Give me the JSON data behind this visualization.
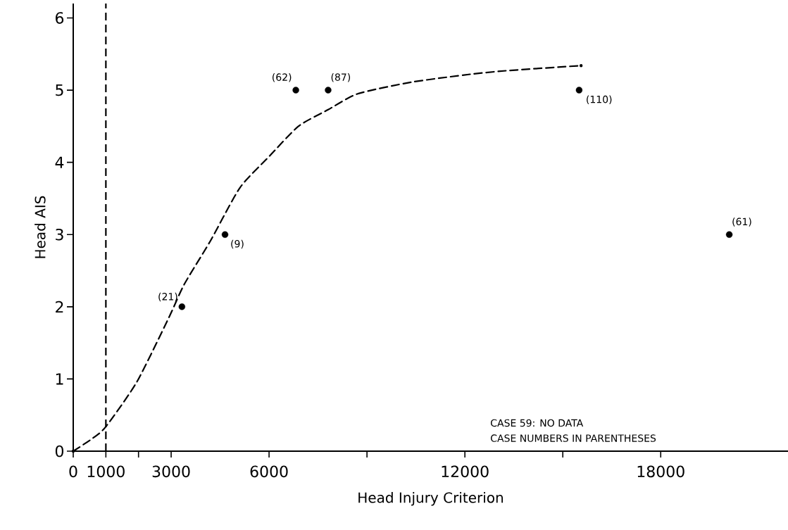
{
  "chart_data": {
    "type": "scatter",
    "xlabel": "Head Injury Criterion",
    "ylabel": "Head AIS",
    "xlim": [
      0,
      21900
    ],
    "ylim": [
      0,
      6.2
    ],
    "xticks": [
      0,
      1000,
      {
        "value": 2000,
        "label": null
      },
      3000,
      6000,
      {
        "value": 9000,
        "label": null
      },
      12000,
      {
        "value": 15000,
        "label": null
      },
      18000
    ],
    "yticks": [
      0,
      1,
      2,
      3,
      4,
      5,
      6
    ],
    "series": [
      {
        "color": "#000000",
        "marker": "circle",
        "x": [
          3330,
          4650,
          6820,
          7810,
          15500,
          20100
        ],
        "values": [
          2,
          3,
          5,
          5,
          5,
          3
        ]
      },
      {
        "type": "line",
        "color": "#000000",
        "line_style": "dashed",
        "marker": "none",
        "x": [
          0,
          600,
          1000,
          1950,
          2940,
          3400,
          4200,
          5110,
          6020,
          6900,
          7810,
          8720,
          10350,
          12160,
          13290,
          15560
        ],
        "values": [
          0,
          0.18,
          0.34,
          0.96,
          1.86,
          2.31,
          2.91,
          3.65,
          4.09,
          4.5,
          4.73,
          4.95,
          5.11,
          5.22,
          5.27,
          5.34
        ]
      }
    ],
    "ref_lines": [
      {
        "axis": "x",
        "value": 1000,
        "color": "#000000",
        "line_style": "dashed"
      }
    ],
    "annotations": [
      {
        "text": "(21)",
        "x": 3330,
        "y": 2
      },
      {
        "text": "(9)",
        "x": 4650,
        "y": 3
      },
      {
        "text": "(62)",
        "x": 6820,
        "y": 5
      },
      {
        "text": "(87)",
        "x": 7810,
        "y": 5
      },
      {
        "text": "(110)",
        "x": 15500,
        "y": 5
      },
      {
        "text": "(61)",
        "x": 20100,
        "y": 3
      },
      "CASE 59: NO DATA",
      "CASE NUMBERS IN PARENTHESES"
    ]
  }
}
